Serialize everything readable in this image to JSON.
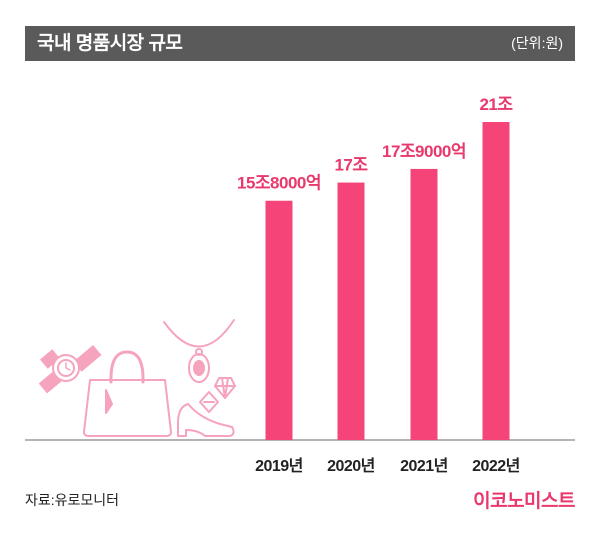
{
  "header": {
    "title": "국내 명품시장 규모",
    "unit": "(단위:원)"
  },
  "footer": {
    "source": "자료:유로모니터",
    "brand": "이코노미스트"
  },
  "colors": {
    "bar": "#f44478",
    "label": "#e8386c",
    "header_bg": "#5a5a5a",
    "illustration": "#f6a3bd"
  },
  "chart_data": {
    "type": "bar",
    "title": "국내 명품시장 규모",
    "unit": "(단위:원)",
    "categories": [
      "2019년",
      "2020년",
      "2021년",
      "2022년"
    ],
    "values": [
      15.8,
      17,
      17.9,
      21
    ],
    "data_labels": [
      "15조8000억",
      "17조",
      "17조9000억",
      "21조"
    ],
    "value_unit": "조원",
    "ylim": [
      0,
      21
    ],
    "grid": false,
    "legend": "none"
  }
}
